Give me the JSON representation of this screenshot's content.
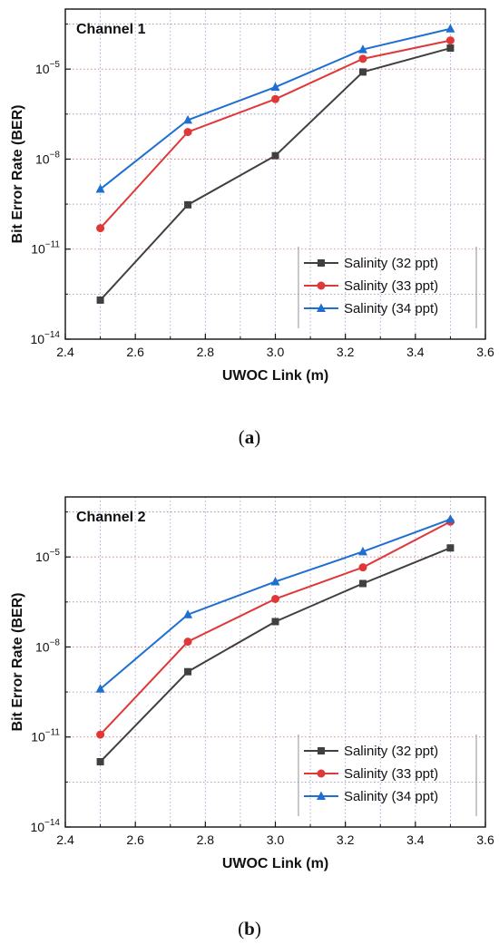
{
  "chart_data": [
    {
      "type": "line",
      "title": "Channel 1",
      "xlabel": "UWOC Link (m)",
      "ylabel": "Bit Error Rate (BER)",
      "xlim": [
        2.4,
        3.6
      ],
      "ylim": [
        1e-14,
        0.001
      ],
      "yscale": "log",
      "xticks": [
        "2.4",
        "2.6",
        "2.8",
        "3.0",
        "3.2",
        "3.4",
        "3.6"
      ],
      "yticks": [
        {
          "base": "10",
          "exp": "-14"
        },
        {
          "base": "10",
          "exp": "-11"
        },
        {
          "base": "10",
          "exp": "-8"
        },
        {
          "base": "10",
          "exp": "-5"
        }
      ],
      "legend_position": "bottom-right",
      "grid": "dotted",
      "x": [
        2.5,
        2.75,
        3.0,
        3.25,
        3.5
      ],
      "series": [
        {
          "name": "Salinity (32 ppt)",
          "color": "#404040",
          "marker": "square",
          "values": [
            2e-13,
            3e-10,
            1.3e-08,
            8e-06,
            5e-05
          ]
        },
        {
          "name": "Salinity (33 ppt)",
          "color": "#e03838",
          "marker": "circle",
          "values": [
            5e-11,
            8e-08,
            1e-06,
            2.2e-05,
            9e-05
          ]
        },
        {
          "name": "Salinity (34 ppt)",
          "color": "#1f6fd0",
          "marker": "triangle",
          "values": [
            1e-09,
            2e-07,
            2.5e-06,
            4.5e-05,
            0.00022
          ]
        }
      ]
    },
    {
      "type": "line",
      "title": "Channel 2",
      "xlabel": "UWOC Link (m)",
      "ylabel": "Bit Error Rate (BER)",
      "xlim": [
        2.4,
        3.6
      ],
      "ylim": [
        1e-14,
        0.001
      ],
      "yscale": "log",
      "xticks": [
        "2.4",
        "2.6",
        "2.8",
        "3.0",
        "3.2",
        "3.4",
        "3.6"
      ],
      "yticks": [
        {
          "base": "10",
          "exp": "-14"
        },
        {
          "base": "10",
          "exp": "-11"
        },
        {
          "base": "10",
          "exp": "-8"
        },
        {
          "base": "10",
          "exp": "-5"
        }
      ],
      "legend_position": "bottom-right",
      "grid": "dotted",
      "x": [
        2.5,
        2.75,
        3.0,
        3.25,
        3.5
      ],
      "series": [
        {
          "name": "Salinity (32 ppt)",
          "color": "#404040",
          "marker": "square",
          "values": [
            1.5e-12,
            1.5e-09,
            7e-08,
            1.3e-06,
            2e-05
          ]
        },
        {
          "name": "Salinity (33 ppt)",
          "color": "#e03838",
          "marker": "circle",
          "values": [
            1.2e-11,
            1.5e-08,
            4e-07,
            4.5e-06,
            0.00015
          ]
        },
        {
          "name": "Salinity (34 ppt)",
          "color": "#1f6fd0",
          "marker": "triangle",
          "values": [
            4e-10,
            1.2e-07,
            1.5e-06,
            1.5e-05,
            0.00018
          ]
        }
      ]
    }
  ],
  "labels": {
    "a": "a",
    "b": "b"
  }
}
